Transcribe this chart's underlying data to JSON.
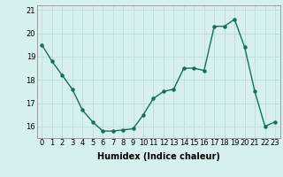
{
  "x": [
    0,
    1,
    2,
    3,
    4,
    5,
    6,
    7,
    8,
    9,
    10,
    11,
    12,
    13,
    14,
    15,
    16,
    17,
    18,
    19,
    20,
    21,
    22,
    23
  ],
  "y": [
    19.5,
    18.8,
    18.2,
    17.6,
    16.7,
    16.2,
    15.8,
    15.8,
    15.85,
    15.9,
    16.5,
    17.2,
    17.5,
    17.6,
    18.5,
    18.5,
    18.4,
    20.3,
    20.3,
    20.6,
    19.4,
    17.5,
    16.0,
    16.2
  ],
  "xlabel": "Humidex (Indice chaleur)",
  "ylabel": "",
  "title": "",
  "line_color": "#1a6b5a",
  "bg_color": "#d6f0ef",
  "grid_color": "#c0dedd",
  "xlim": [
    -0.5,
    23.5
  ],
  "ylim": [
    15.5,
    21.2
  ],
  "yticks": [
    16,
    17,
    18,
    19,
    20,
    21
  ],
  "xtick_labels": [
    "0",
    "1",
    "2",
    "3",
    "4",
    "5",
    "6",
    "7",
    "8",
    "9",
    "10",
    "11",
    "12",
    "13",
    "14",
    "15",
    "16",
    "17",
    "18",
    "19",
    "20",
    "21",
    "22",
    "23"
  ],
  "marker_size": 2.2,
  "line_width": 1.0,
  "xlabel_fontsize": 7,
  "tick_fontsize": 6
}
